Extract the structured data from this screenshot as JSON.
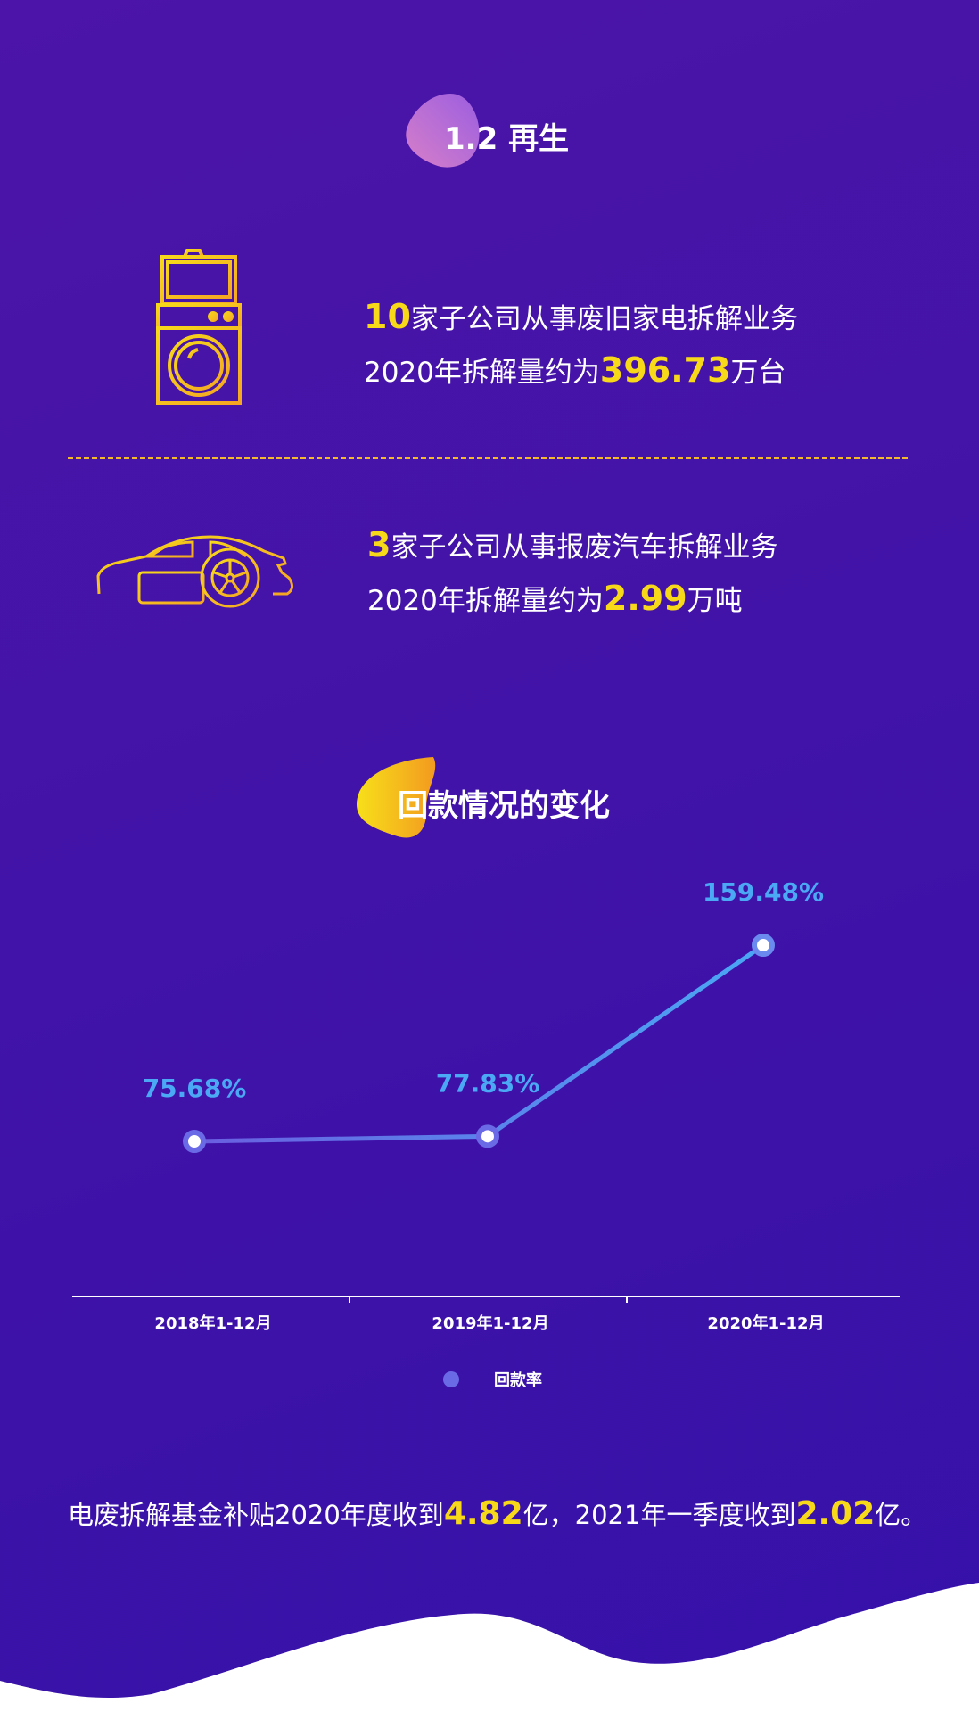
{
  "section_title": "1.2 再生",
  "appliance": {
    "icon": "washing-machine-icon",
    "count": "10",
    "line1_suffix": "家子公司从事废旧家电拆解业务",
    "line2_prefix": "2020年拆解量约为",
    "amount": "396.73",
    "unit": "万台"
  },
  "vehicle": {
    "icon": "car-icon",
    "count": "3",
    "line1_suffix": "家子公司从事报废汽车拆解业务",
    "line2_prefix": "2020年拆解量约为",
    "amount": "2.99",
    "unit": "万吨"
  },
  "chart_title": "回款情况的变化",
  "chart_data": {
    "type": "line",
    "title": "回款情况的变化",
    "categories": [
      "2018年1-12月",
      "2019年1-12月",
      "2020年1-12月"
    ],
    "series": [
      {
        "name": "回款率",
        "values": [
          75.68,
          77.83,
          159.48
        ],
        "labels": [
          "75.68%",
          "77.83%",
          "159.48%"
        ]
      }
    ],
    "legend": "bottom",
    "grid": false,
    "colors": {
      "line_start": "#6a5ee0",
      "line_end": "#4aa8f5",
      "label": "#4aa8f5"
    }
  },
  "bottom_text": {
    "part1": "电废拆解基金补贴2020年度收到",
    "amount1": "4.82",
    "part2": "亿，2021年一季度收到",
    "amount2": "2.02",
    "part3": "亿。"
  },
  "colors": {
    "highlight": "#f7d91a",
    "background": "#3f12a8"
  }
}
